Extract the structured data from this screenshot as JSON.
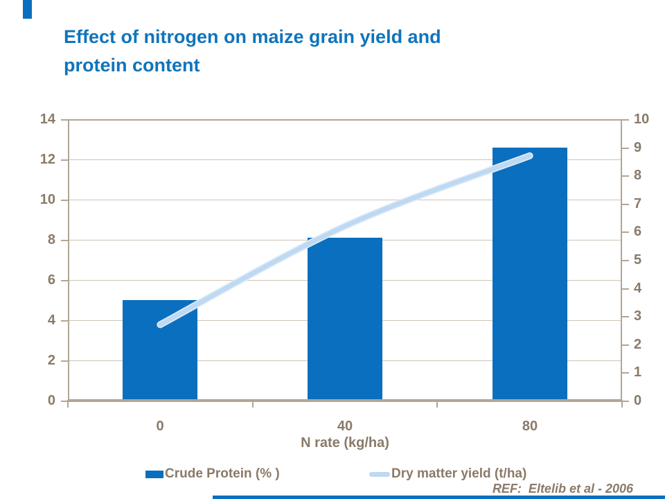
{
  "title": {
    "line1": "Effect of nitrogen on maize grain yield and",
    "line2": "protein content"
  },
  "chart_data": {
    "type": "bar",
    "subtype": "combo-bar-line-dual-axis",
    "categories": [
      "0",
      "40",
      "80"
    ],
    "series": [
      {
        "name": "Crude Protein (% )",
        "type": "bar",
        "axis": "left",
        "values": [
          5.0,
          8.1,
          12.6
        ]
      },
      {
        "name": "Dry matter yield (t/ha)",
        "type": "line",
        "axis": "right",
        "values": [
          2.7,
          6.2,
          8.7
        ]
      }
    ],
    "xlabel": "N rate (kg/ha)",
    "left_axis": {
      "min": 0,
      "max": 14,
      "step": 2,
      "ticks": [
        "0",
        "2",
        "4",
        "6",
        "8",
        "10",
        "12",
        "14"
      ]
    },
    "right_axis": {
      "min": 0,
      "max": 10,
      "step": 1,
      "ticks": [
        "0",
        "1",
        "2",
        "3",
        "4",
        "5",
        "6",
        "7",
        "8",
        "9",
        "10"
      ]
    },
    "grid": true,
    "legend_position": "bottom"
  },
  "footer": {
    "ref": "REF:  Eltelib et al - 2006"
  },
  "colors": {
    "title": "#0f74bc",
    "bar": "#0a6fbe",
    "line": "#bed9f2",
    "line_halo": "#dce9f8",
    "axis_text": "#8a7a68",
    "axis_line": "#b2a597",
    "gridline": "#cdc3b6",
    "accent": "#0a6fbe"
  }
}
